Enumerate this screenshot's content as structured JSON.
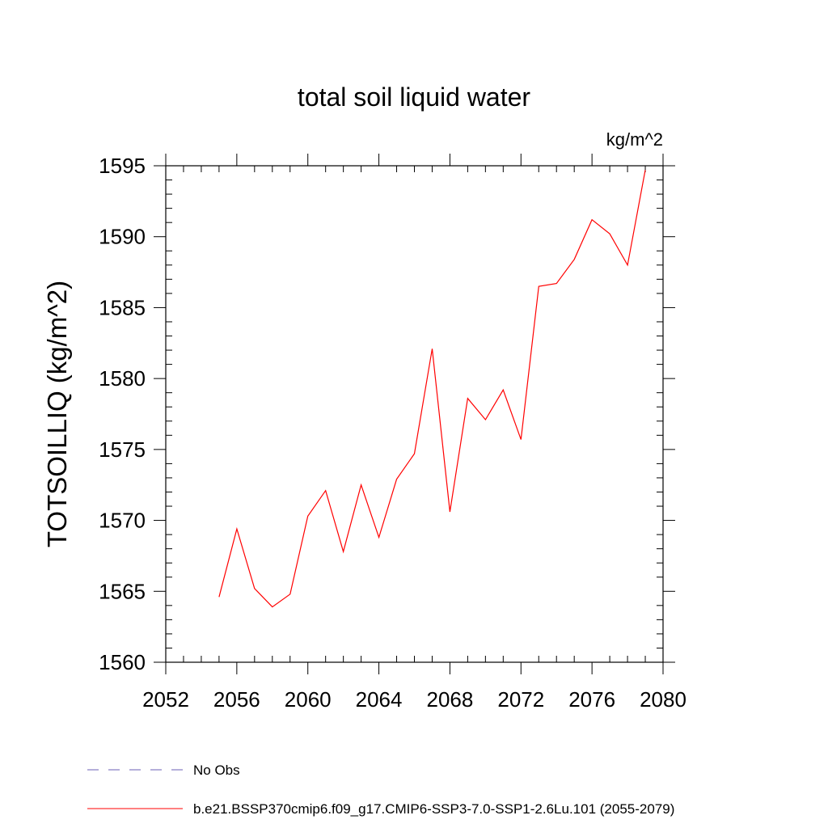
{
  "chart_data": {
    "type": "line",
    "title": "total soil liquid water",
    "units": "kg/m^2",
    "xlabel": "",
    "ylabel": "TOTSOILLIQ  (kg/m^2)",
    "xlim": [
      2052,
      2080
    ],
    "ylim": [
      1560,
      1595
    ],
    "xticks": [
      2052,
      2056,
      2060,
      2064,
      2068,
      2072,
      2076,
      2080
    ],
    "yticks": [
      1560,
      1565,
      1570,
      1575,
      1580,
      1585,
      1590,
      1595
    ],
    "grid": false,
    "series": [
      {
        "name": "b.e21.BSSP370cmip6.f09_g17.CMIP6-SSP3-7.0-SSP1-2.6Lu.101 (2055-2079)",
        "color": "#ff0000",
        "x": [
          2055,
          2056,
          2057,
          2058,
          2059,
          2060,
          2061,
          2062,
          2063,
          2064,
          2065,
          2066,
          2067,
          2068,
          2069,
          2070,
          2071,
          2072,
          2073,
          2074,
          2075,
          2076,
          2077,
          2078,
          2079
        ],
        "values": [
          1564.6,
          1569.4,
          1565.2,
          1563.9,
          1564.8,
          1570.3,
          1572.1,
          1567.8,
          1572.5,
          1568.8,
          1572.9,
          1574.7,
          1582.1,
          1570.6,
          1578.6,
          1577.1,
          1579.2,
          1575.7,
          1586.5,
          1586.7,
          1588.4,
          1591.2,
          1590.2,
          1588.0,
          1594.7
        ]
      }
    ],
    "legend": {
      "position": "bottom-left",
      "entries": [
        {
          "label": "No Obs",
          "style": "dashed",
          "color": "#6b5fb5"
        },
        {
          "label": "b.e21.BSSP370cmip6.f09_g17.CMIP6-SSP3-7.0-SSP1-2.6Lu.101 (2055-2079)",
          "style": "solid",
          "color": "#ff0000"
        }
      ]
    }
  }
}
